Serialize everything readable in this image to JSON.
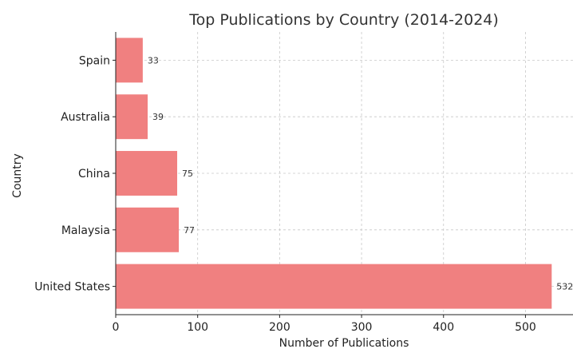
{
  "chart_data": {
    "type": "bar",
    "orientation": "horizontal",
    "title": "Top Publications by Country (2014-2024)",
    "xlabel": "Number of Publications",
    "ylabel": "Country",
    "categories": [
      "United States",
      "Malaysia",
      "China",
      "Australia",
      "Spain"
    ],
    "values": [
      532,
      77,
      75,
      39,
      33
    ],
    "value_labels": [
      "532",
      "77",
      "75",
      "39",
      "33"
    ],
    "xlim": [
      0,
      558
    ],
    "xticks": [
      0,
      100,
      200,
      300,
      400,
      500
    ],
    "xtick_labels": [
      "0",
      "100",
      "200",
      "300",
      "400",
      "500"
    ],
    "grid": true,
    "bar_color": "#f08080"
  }
}
